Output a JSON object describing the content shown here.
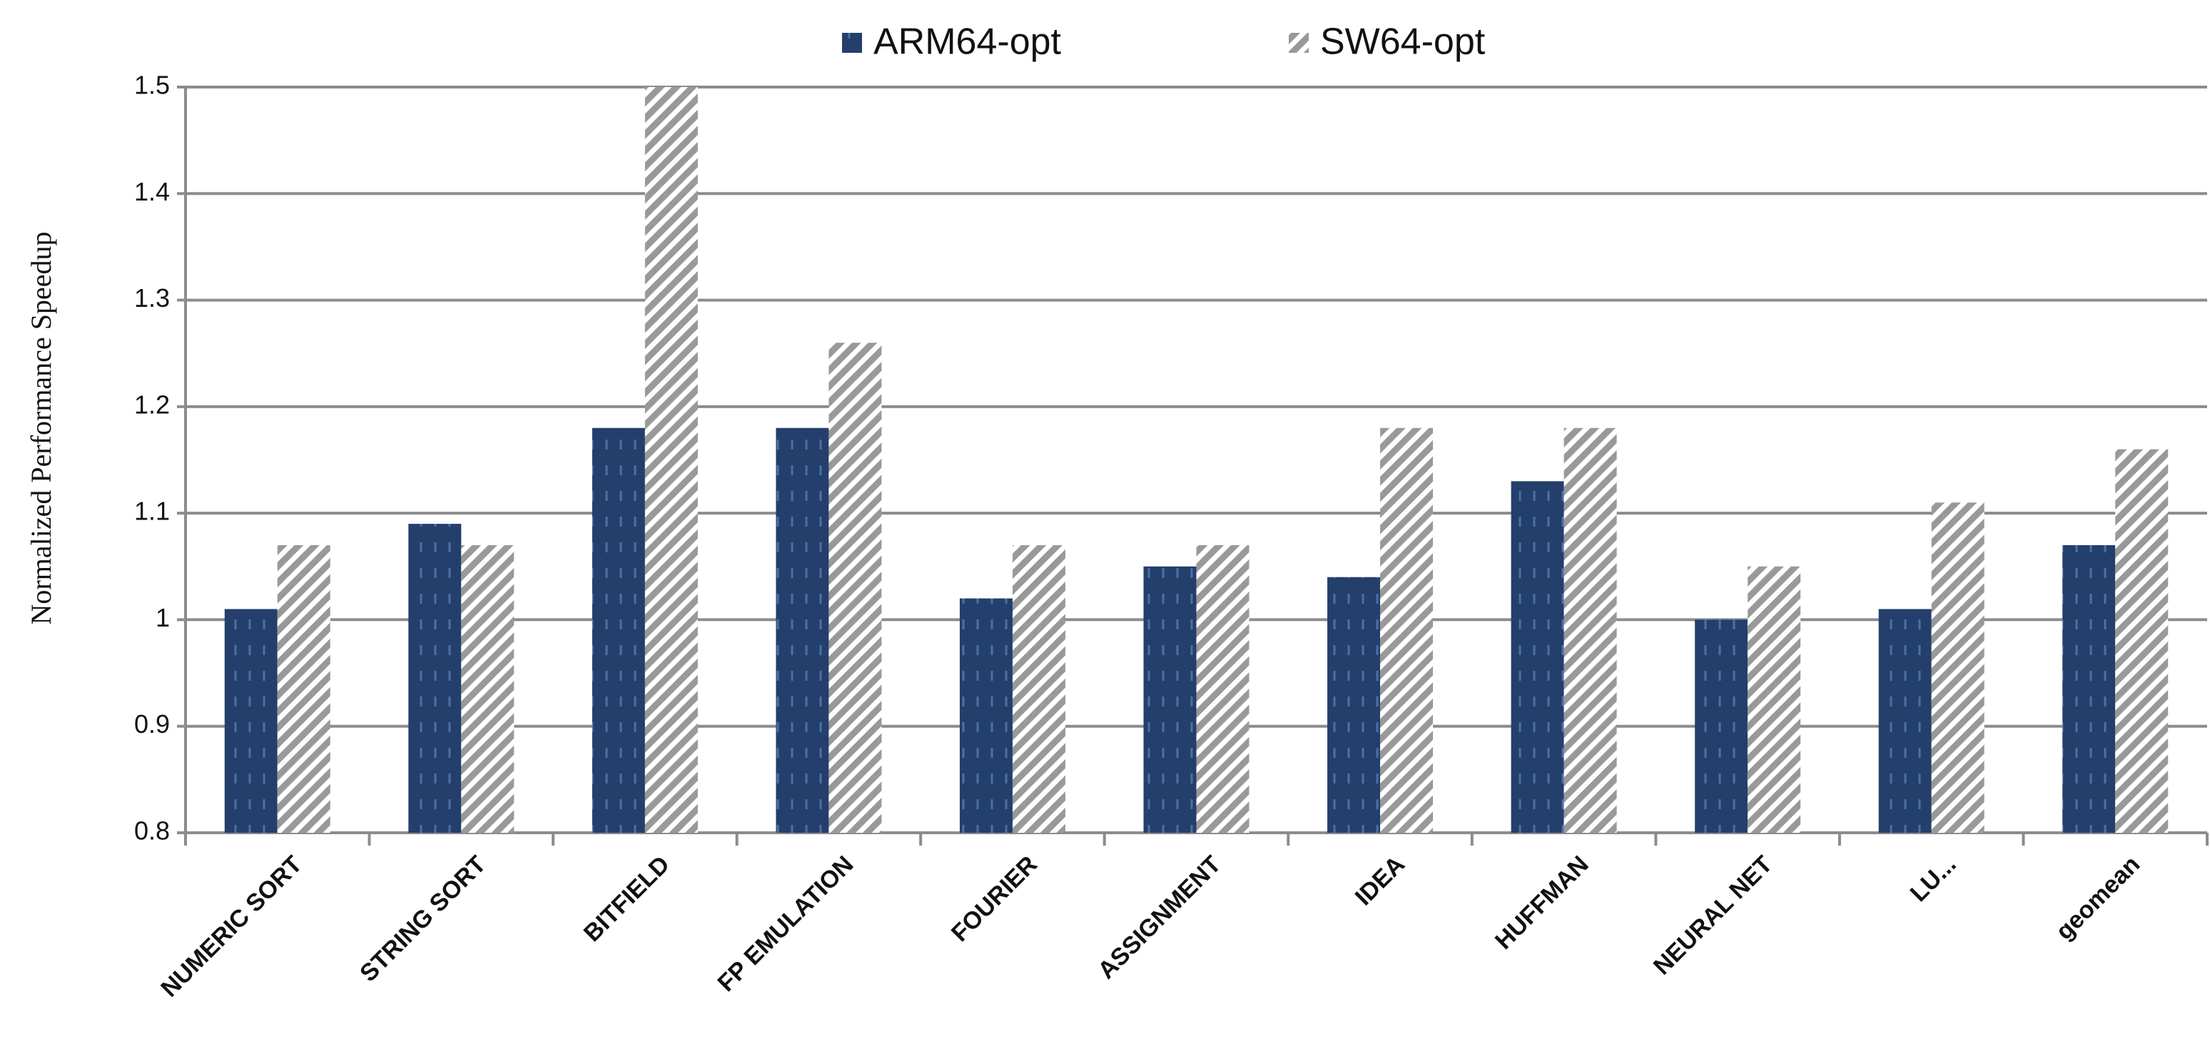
{
  "chart_data": {
    "type": "bar",
    "y_label": "Normalized Performance Speedup",
    "categories": [
      "NUMERIC SORT",
      "STRING SORT",
      "BITFIELD",
      "FP EMULATION",
      "FOURIER",
      "ASSIGNMENT",
      "IDEA",
      "HUFFMAN",
      "NEURAL NET",
      "LU...",
      "geomean"
    ],
    "series": [
      {
        "name": "ARM64-opt",
        "color": "#243f6b",
        "values": [
          1.01,
          1.09,
          1.18,
          1.18,
          1.02,
          1.05,
          1.04,
          1.13,
          1.0,
          1.01,
          1.07
        ]
      },
      {
        "name": "SW64-opt",
        "color": "#999999",
        "values": [
          1.07,
          1.07,
          1.5,
          1.26,
          1.07,
          1.07,
          1.18,
          1.18,
          1.05,
          1.11,
          1.16
        ]
      }
    ],
    "ylim": [
      0.8,
      1.5
    ],
    "yticks": [
      0.8,
      0.9,
      1,
      1.1,
      1.2,
      1.3,
      1.4,
      1.5
    ],
    "grid": true
  }
}
